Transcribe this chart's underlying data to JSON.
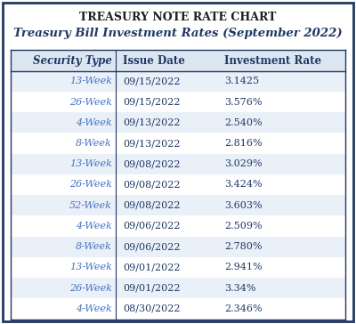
{
  "title": "TREASURY NOTE RATE CHART",
  "subtitle": "Treasury Bill Investment Rates (September 2022)",
  "columns": [
    "Security Type",
    "Issue Date",
    "Investment Rate"
  ],
  "rows": [
    [
      "13-Week",
      "09/15/2022",
      "3.1425"
    ],
    [
      "26-Week",
      "09/15/2022",
      "3.576%"
    ],
    [
      "4-Week",
      "09/13/2022",
      "2.540%"
    ],
    [
      "8-Week",
      "09/13/2022",
      "2.816%"
    ],
    [
      "13-Week",
      "09/08/2022",
      "3.029%"
    ],
    [
      "26-Week",
      "09/08/2022",
      "3.424%"
    ],
    [
      "52-Week",
      "09/08/2022",
      "3.603%"
    ],
    [
      "4-Week",
      "09/06/2022",
      "2.509%"
    ],
    [
      "8-Week",
      "09/06/2022",
      "2.780%"
    ],
    [
      "13-Week",
      "09/01/2022",
      "2.941%"
    ],
    [
      "26-Week",
      "09/01/2022",
      "3.34%"
    ],
    [
      "4-Week",
      "08/30/2022",
      "2.346%"
    ]
  ],
  "header_bg": "#dce6f1",
  "row_bg_even": "#ffffff",
  "row_bg_odd": "#eaf0f8",
  "header_text_color": "#1f3864",
  "col0_text_color": "#4472c4",
  "data_text_color": "#1f3864",
  "title_color": "#1f1f1f",
  "subtitle_color": "#1f3864",
  "border_color": "#1f3864",
  "outer_border_color": "#1f3864",
  "fig_bg": "#ffffff"
}
